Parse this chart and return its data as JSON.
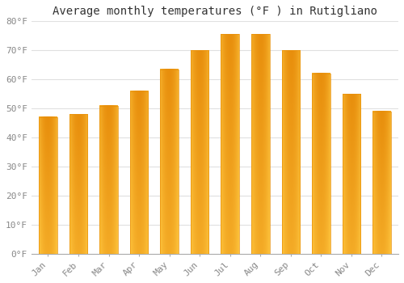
{
  "months": [
    "Jan",
    "Feb",
    "Mar",
    "Apr",
    "May",
    "Jun",
    "Jul",
    "Aug",
    "Sep",
    "Oct",
    "Nov",
    "Dec"
  ],
  "values": [
    47.0,
    48.0,
    51.0,
    56.0,
    63.5,
    70.0,
    75.5,
    75.5,
    70.0,
    62.0,
    55.0,
    49.0
  ],
  "bar_color_main": "#FFA500",
  "bar_color_light": "#FFD060",
  "bar_color_dark": "#E8900A",
  "title": "Average monthly temperatures (°F ) in Rutigliano",
  "ylim": [
    0,
    80
  ],
  "ytick_step": 10,
  "background_color": "#FFFFFF",
  "grid_color": "#E0E0E0",
  "title_fontsize": 10,
  "tick_fontsize": 8,
  "font_family": "monospace"
}
